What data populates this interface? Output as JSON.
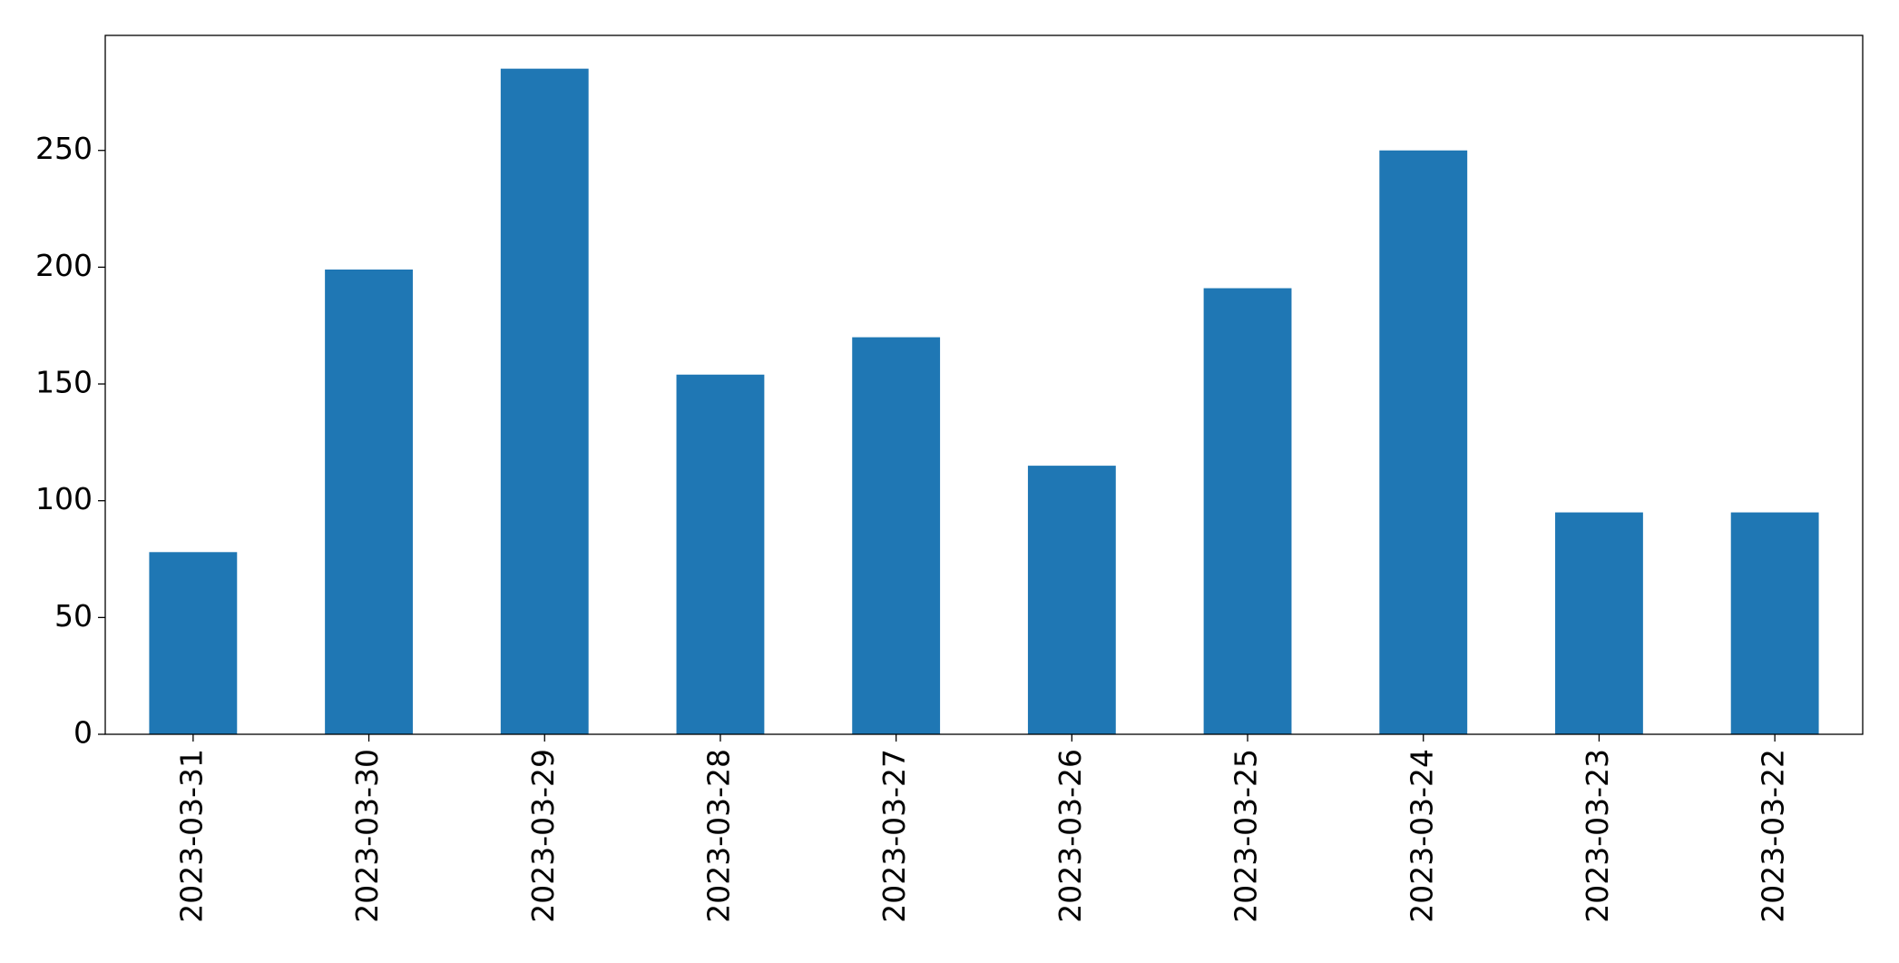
{
  "chart_data": {
    "type": "bar",
    "categories": [
      "2023-03-31",
      "2023-03-30",
      "2023-03-29",
      "2023-03-28",
      "2023-03-27",
      "2023-03-26",
      "2023-03-25",
      "2023-03-24",
      "2023-03-23",
      "2023-03-22"
    ],
    "values": [
      78,
      199,
      285,
      154,
      170,
      115,
      191,
      250,
      95,
      95
    ],
    "color": "#1f77b4",
    "ylim": [
      0,
      299.25
    ],
    "yticks": [
      0,
      50,
      100,
      150,
      200,
      250
    ],
    "grid": false
  }
}
